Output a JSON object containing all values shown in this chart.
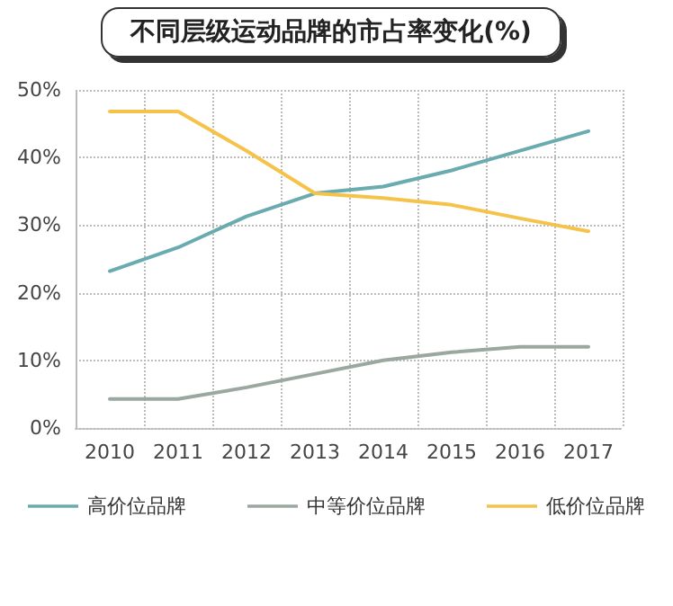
{
  "chart_data": {
    "type": "line",
    "title": "不同层级运动品牌的市占率变化(%)",
    "categories": [
      "2010",
      "2011",
      "2012",
      "2013",
      "2014",
      "2015",
      "2016",
      "2017"
    ],
    "series": [
      {
        "name": "高价位品牌",
        "color": "#6aabb0",
        "values": [
          23.2,
          26.7,
          31.3,
          34.7,
          35.7,
          38.1,
          41.0,
          43.9
        ]
      },
      {
        "name": "中等价位品牌",
        "color": "#9aa8a0",
        "values": [
          4.3,
          4.3,
          6.0,
          8.0,
          10.0,
          11.2,
          12.0,
          12.0
        ]
      },
      {
        "name": "低价位品牌",
        "color": "#f5c24a",
        "values": [
          46.8,
          46.8,
          41.0,
          34.7,
          34.0,
          33.0,
          31.0,
          29.1
        ]
      }
    ],
    "ylim": [
      0,
      50
    ],
    "yticks": [
      {
        "value": 0,
        "label": "0%"
      },
      {
        "value": 10,
        "label": "10%"
      },
      {
        "value": 20,
        "label": "20%"
      },
      {
        "value": 30,
        "label": "30%"
      },
      {
        "value": 40,
        "label": "40%"
      },
      {
        "value": 50,
        "label": "50%"
      }
    ],
    "grid": true,
    "legend": "bottom",
    "marker": "none",
    "line_style": "solid"
  }
}
